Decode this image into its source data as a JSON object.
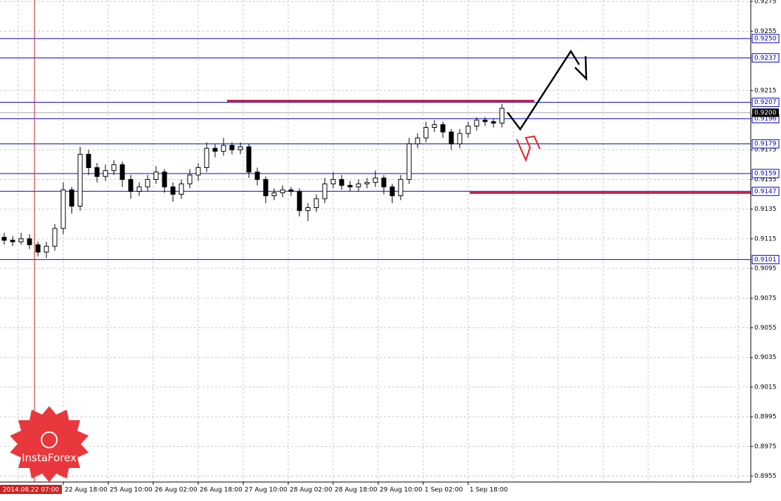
{
  "chart_data": {
    "type": "candlestick",
    "candles": {
      "open": [
        0.9116,
        0.9114,
        0.9113,
        0.9115,
        0.9111,
        0.9106,
        0.911,
        0.9122,
        0.9148,
        0.9137,
        0.9172,
        0.9163,
        0.9157,
        0.9161,
        0.9165,
        0.9155,
        0.9147,
        0.915,
        0.9155,
        0.916,
        0.915,
        0.9145,
        0.9152,
        0.9158,
        0.9163,
        0.9176,
        0.9174,
        0.9178,
        0.9175,
        0.9177,
        0.916,
        0.9155,
        0.9144,
        0.9146,
        0.9148,
        0.9147,
        0.9134,
        0.9136,
        0.9142,
        0.9152,
        0.9155,
        0.9151,
        0.915,
        0.9152,
        0.9153,
        0.9156,
        0.915,
        0.9144,
        0.9155,
        0.9179,
        0.9183,
        0.919,
        0.9192,
        0.9187,
        0.9179,
        0.9186,
        0.9191,
        0.9195,
        0.9194,
        0.9193
      ],
      "high": [
        0.9119,
        0.9117,
        0.9119,
        0.9118,
        0.9113,
        0.9113,
        0.9125,
        0.9153,
        0.915,
        0.9177,
        0.9175,
        0.9166,
        0.9165,
        0.9168,
        0.9167,
        0.9158,
        0.9153,
        0.9158,
        0.9164,
        0.9162,
        0.9153,
        0.9155,
        0.9162,
        0.9166,
        0.918,
        0.9179,
        0.9183,
        0.918,
        0.918,
        0.9179,
        0.9163,
        0.9157,
        0.9149,
        0.9151,
        0.915,
        0.9149,
        0.9139,
        0.9145,
        0.9156,
        0.916,
        0.9158,
        0.9154,
        0.9155,
        0.9156,
        0.9161,
        0.9158,
        0.9152,
        0.9158,
        0.9183,
        0.9186,
        0.9194,
        0.9195,
        0.9194,
        0.9189,
        0.9189,
        0.9194,
        0.9197,
        0.9197,
        0.9196,
        0.9206
      ],
      "low": [
        0.9111,
        0.911,
        0.9111,
        0.9108,
        0.9103,
        0.9102,
        0.9107,
        0.9118,
        0.9132,
        0.9134,
        0.9158,
        0.9153,
        0.9154,
        0.9158,
        0.915,
        0.9142,
        0.9144,
        0.9147,
        0.9152,
        0.9146,
        0.914,
        0.9142,
        0.9149,
        0.9154,
        0.916,
        0.917,
        0.9171,
        0.9172,
        0.9172,
        0.9156,
        0.9151,
        0.9139,
        0.9141,
        0.9143,
        0.9144,
        0.913,
        0.9127,
        0.9133,
        0.9139,
        0.9149,
        0.9148,
        0.9147,
        0.9147,
        0.9149,
        0.915,
        0.9145,
        0.9139,
        0.9141,
        0.9152,
        0.9176,
        0.918,
        0.9187,
        0.9183,
        0.9175,
        0.9176,
        0.9183,
        0.9188,
        0.9191,
        0.919,
        0.919
      ],
      "close": [
        0.9114,
        0.9113,
        0.9115,
        0.9111,
        0.9106,
        0.911,
        0.9122,
        0.9148,
        0.9137,
        0.9172,
        0.9163,
        0.9157,
        0.9161,
        0.9165,
        0.9155,
        0.9147,
        0.915,
        0.9155,
        0.916,
        0.915,
        0.9145,
        0.9152,
        0.9158,
        0.9163,
        0.9176,
        0.9174,
        0.9178,
        0.9175,
        0.9177,
        0.916,
        0.9155,
        0.9144,
        0.9146,
        0.9148,
        0.9147,
        0.9134,
        0.9136,
        0.9142,
        0.9152,
        0.9155,
        0.9151,
        0.915,
        0.9152,
        0.9153,
        0.9156,
        0.915,
        0.9144,
        0.9155,
        0.9179,
        0.9183,
        0.919,
        0.9192,
        0.9187,
        0.9179,
        0.9186,
        0.9191,
        0.9195,
        0.9194,
        0.9193,
        0.9203
      ]
    },
    "ylim": [
      0.8951,
      0.9276
    ],
    "yticks": [
      0.9275,
      0.9255,
      0.9215,
      0.9175,
      0.9155,
      0.9135,
      0.9115,
      0.9095,
      0.9075,
      0.9055,
      0.9035,
      0.9015,
      0.8995,
      0.8975,
      0.8955
    ],
    "grid": true,
    "levels": [
      {
        "value": 0.925,
        "label": "0.9250"
      },
      {
        "value": 0.9237,
        "label": "0.9237"
      },
      {
        "value": 0.9207,
        "label": "0.9207"
      },
      {
        "value": 0.9196,
        "label": "0.9196"
      },
      {
        "value": 0.9179,
        "label": "0.9179"
      },
      {
        "value": 0.9159,
        "label": "0.9159"
      },
      {
        "value": 0.9147,
        "label": "0.9147"
      },
      {
        "value": 0.9101,
        "label": "0.9101"
      }
    ],
    "level_color": "#0000cc",
    "current_price": {
      "value": 0.92,
      "label": "0.9200"
    },
    "zones": [
      0.9208,
      0.9146
    ],
    "zone_color": "#cc2244",
    "xtick_labels": [
      "22 Aug 18:00",
      "25 Aug 10:00",
      "26 Aug 02:00",
      "26 Aug 18:00",
      "27 Aug 10:00",
      "28 Aug 02:00",
      "28 Aug 18:00",
      "29 Aug 10:00",
      "1 Sep 02:00",
      "1 Sep 18:00"
    ],
    "cursor_label": "2014.08.22 07:00",
    "logo": "InstaForex"
  }
}
